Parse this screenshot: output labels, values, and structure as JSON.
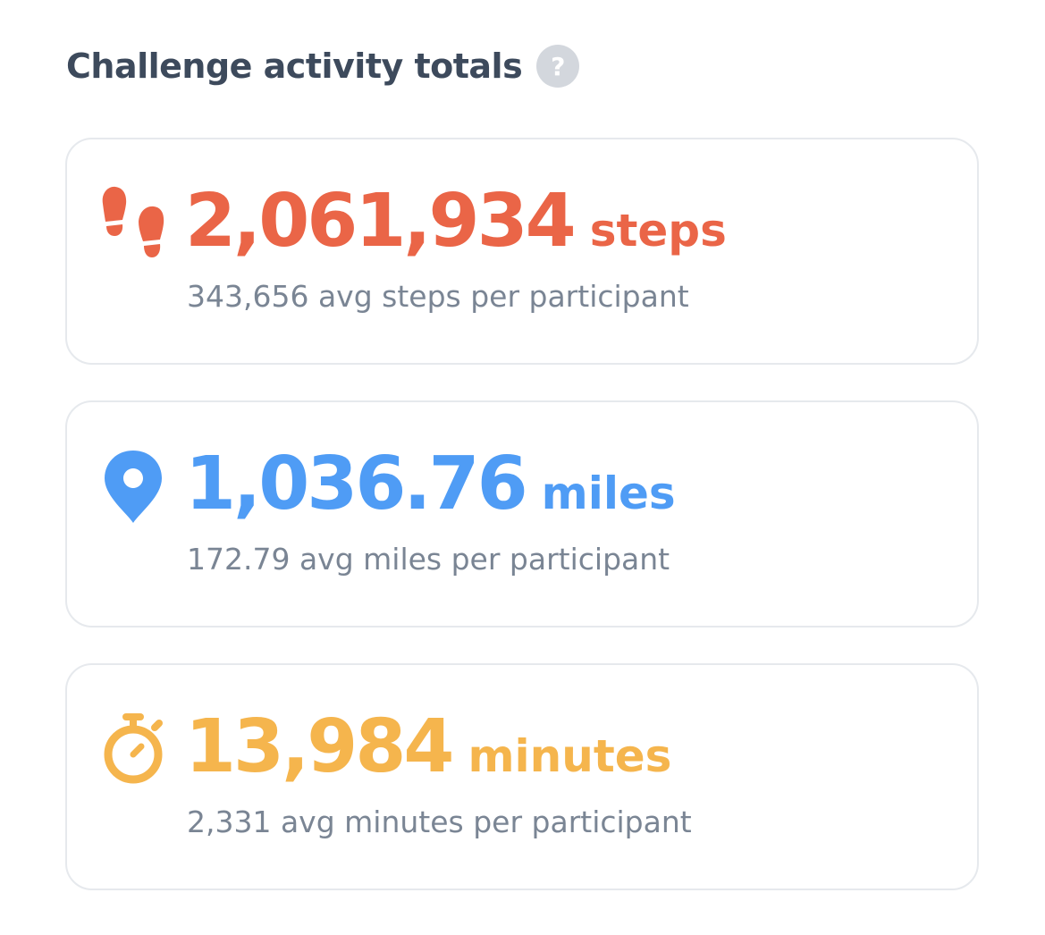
{
  "header": {
    "title": "Challenge activity totals",
    "help_label": "?"
  },
  "cards": [
    {
      "icon": "footsteps-icon",
      "value": "2,061,934",
      "unit": "steps",
      "subtext": "343,656 avg steps per participant",
      "color": "#ea6547"
    },
    {
      "icon": "map-pin-icon",
      "value": "1,036.76",
      "unit": "miles",
      "subtext": "172.79 avg miles per participant",
      "color": "#4f9cf5"
    },
    {
      "icon": "stopwatch-icon",
      "value": "13,984",
      "unit": "minutes",
      "subtext": "2,331 avg minutes per participant",
      "color": "#f5b54d"
    }
  ]
}
